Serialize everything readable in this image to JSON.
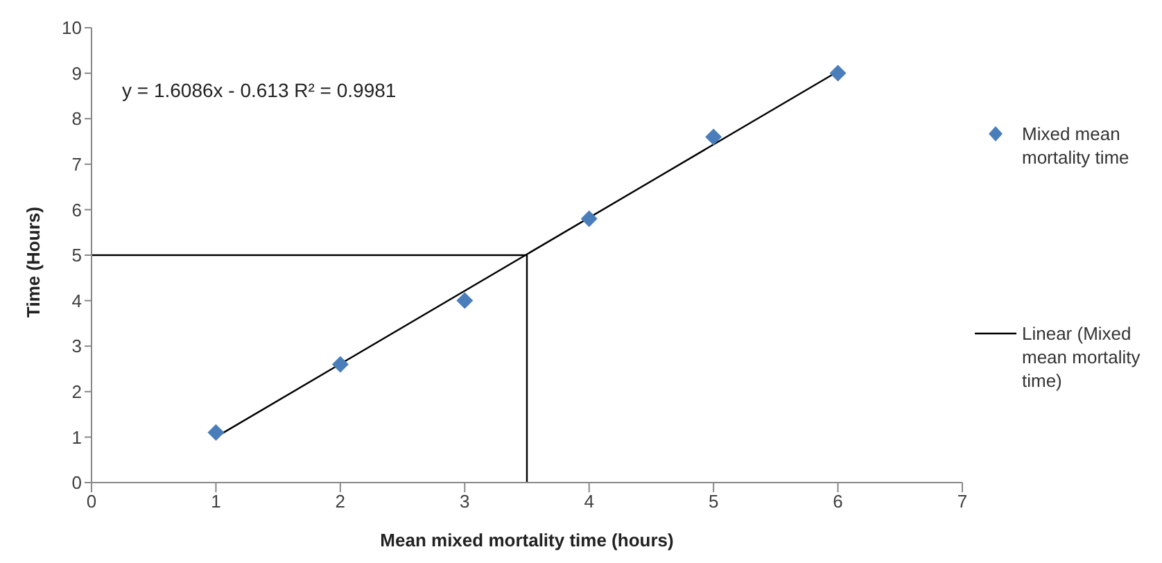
{
  "chart_data": {
    "type": "scatter",
    "xlabel": "Mean mixed mortality time (hours)",
    "ylabel": "Time (Hours)",
    "annotations": [
      "y = 1.6086x - 0.613 R² = 0.9981"
    ],
    "series": [
      {
        "name": "Mixed mean mortality time",
        "color": "#4a7ebb",
        "x": [
          1,
          2,
          3,
          4,
          5,
          6
        ],
        "values": [
          1.1,
          2.6,
          4.0,
          5.8,
          7.6,
          9.0
        ],
        "marker": "diamond"
      },
      {
        "name": "Linear (Mixed mean mortality time)",
        "type": "line",
        "color": "#000000",
        "x": [
          1,
          6
        ],
        "values": [
          1.0,
          9.04
        ],
        "marker": "none"
      },
      {
        "type": "line",
        "color": "#000000",
        "x": [
          0,
          3.5,
          3.5
        ],
        "values": [
          5,
          5,
          0
        ],
        "marker": "none"
      }
    ],
    "xlim": [
      0,
      7
    ],
    "xticks": [
      0,
      1,
      2,
      3,
      4,
      5,
      6,
      7
    ],
    "ylim": [
      0,
      10
    ],
    "yticks": [
      0,
      1,
      2,
      3,
      4,
      5,
      6,
      7,
      8,
      9,
      10
    ],
    "grid": false,
    "legend": "right",
    "line_style": "solid"
  }
}
